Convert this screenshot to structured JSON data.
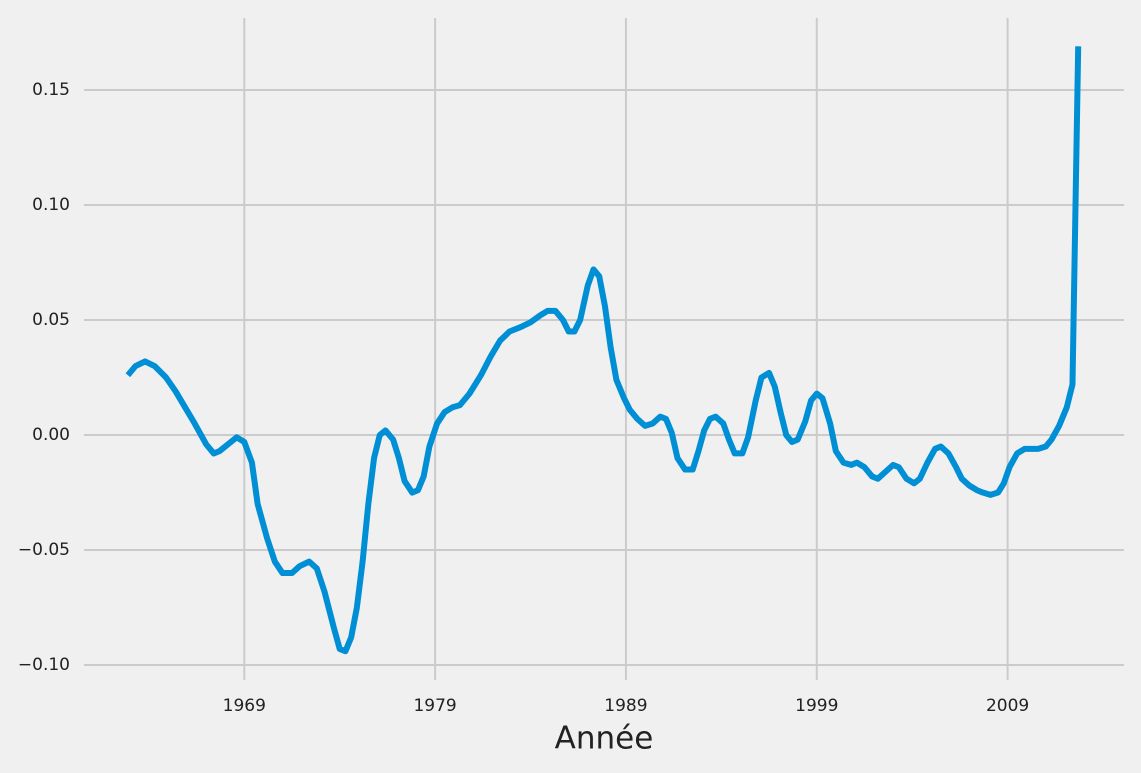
{
  "chart_data": {
    "type": "line",
    "x_label": "Année",
    "x": [
      1962.9,
      1963.3,
      1963.8,
      1964.3,
      1964.9,
      1965.4,
      1965.9,
      1966.4,
      1967.0,
      1967.4,
      1967.7,
      1968.3,
      1968.6,
      1969.0,
      1969.4,
      1969.7,
      1970.2,
      1970.6,
      1971.0,
      1971.5,
      1971.9,
      1972.4,
      1972.8,
      1973.2,
      1973.7,
      1974.0,
      1974.3,
      1974.6,
      1974.9,
      1975.2,
      1975.5,
      1975.8,
      1976.1,
      1976.4,
      1976.8,
      1977.1,
      1977.4,
      1977.8,
      1978.1,
      1978.4,
      1978.7,
      1979.1,
      1979.5,
      1979.9,
      1980.3,
      1980.8,
      1981.4,
      1981.9,
      1982.4,
      1982.9,
      1983.5,
      1984.0,
      1984.5,
      1984.9,
      1985.3,
      1985.7,
      1986.0,
      1986.3,
      1986.6,
      1987.0,
      1987.3,
      1987.6,
      1987.9,
      1988.2,
      1988.5,
      1988.9,
      1989.2,
      1989.6,
      1990.0,
      1990.4,
      1990.8,
      1991.1,
      1991.4,
      1991.7,
      1992.1,
      1992.5,
      1992.8,
      1993.1,
      1993.4,
      1993.7,
      1994.1,
      1994.4,
      1994.7,
      1995.1,
      1995.4,
      1995.8,
      1996.1,
      1996.5,
      1996.8,
      1997.1,
      1997.4,
      1997.7,
      1998.0,
      1998.4,
      1998.7,
      1999.0,
      1999.3,
      1999.7,
      2000.0,
      2000.4,
      2000.8,
      2001.1,
      2001.5,
      2001.9,
      2002.2,
      2002.6,
      2003.0,
      2003.3,
      2003.7,
      2004.1,
      2004.4,
      2004.8,
      2005.2,
      2005.5,
      2005.9,
      2006.3,
      2006.6,
      2007.0,
      2007.4,
      2007.7,
      2008.1,
      2008.5,
      2008.8,
      2009.1,
      2009.5,
      2009.9,
      2010.2,
      2010.6,
      2011.0,
      2011.3,
      2011.7,
      2012.1,
      2012.4,
      2012.7
    ],
    "series": [
      {
        "color": "#008fd5",
        "values": [
          0.026,
          0.03,
          0.032,
          0.03,
          0.025,
          0.019,
          0.012,
          0.005,
          -0.004,
          -0.008,
          -0.007,
          -0.003,
          -0.001,
          -0.003,
          -0.012,
          -0.03,
          -0.045,
          -0.055,
          -0.06,
          -0.06,
          -0.057,
          -0.055,
          -0.058,
          -0.068,
          -0.084,
          -0.093,
          -0.094,
          -0.088,
          -0.075,
          -0.055,
          -0.03,
          -0.01,
          0.0,
          0.002,
          -0.002,
          -0.01,
          -0.02,
          -0.025,
          -0.024,
          -0.018,
          -0.005,
          0.005,
          0.01,
          0.012,
          0.013,
          0.018,
          0.026,
          0.034,
          0.041,
          0.045,
          0.047,
          0.049,
          0.052,
          0.054,
          0.054,
          0.05,
          0.045,
          0.045,
          0.05,
          0.065,
          0.072,
          0.069,
          0.056,
          0.038,
          0.024,
          0.016,
          0.011,
          0.007,
          0.004,
          0.005,
          0.008,
          0.007,
          0.001,
          -0.01,
          -0.015,
          -0.015,
          -0.007,
          0.002,
          0.007,
          0.008,
          0.005,
          -0.002,
          -0.008,
          -0.008,
          -0.001,
          0.015,
          0.025,
          0.027,
          0.021,
          0.01,
          0.0,
          -0.003,
          -0.002,
          0.006,
          0.015,
          0.018,
          0.016,
          0.005,
          -0.007,
          -0.012,
          -0.013,
          -0.012,
          -0.014,
          -0.018,
          -0.019,
          -0.016,
          -0.013,
          -0.014,
          -0.019,
          -0.021,
          -0.019,
          -0.012,
          -0.006,
          -0.005,
          -0.008,
          -0.014,
          -0.019,
          -0.022,
          -0.024,
          -0.025,
          -0.026,
          -0.025,
          -0.021,
          -0.014,
          -0.008,
          -0.006,
          -0.006,
          -0.006,
          -0.005,
          -0.002,
          0.004,
          0.012,
          0.022,
          0.169
        ]
      }
    ],
    "xlim": [
      1960.6,
      2015.1
    ],
    "xticks": [
      1969,
      1979,
      1989,
      1999,
      2009
    ],
    "ylim": [
      -0.1065,
      0.1813
    ],
    "yticks": [
      {
        "value": -0.1,
        "label": "−0.10"
      },
      {
        "value": -0.05,
        "label": "−0.05"
      },
      {
        "value": 0,
        "label": "0.00"
      },
      0.05,
      {
        "value": 0.1,
        "label": "0.10"
      },
      0.15
    ],
    "grid": true,
    "grid_color": "#cbcbcb",
    "background": "#f0f0f0"
  }
}
